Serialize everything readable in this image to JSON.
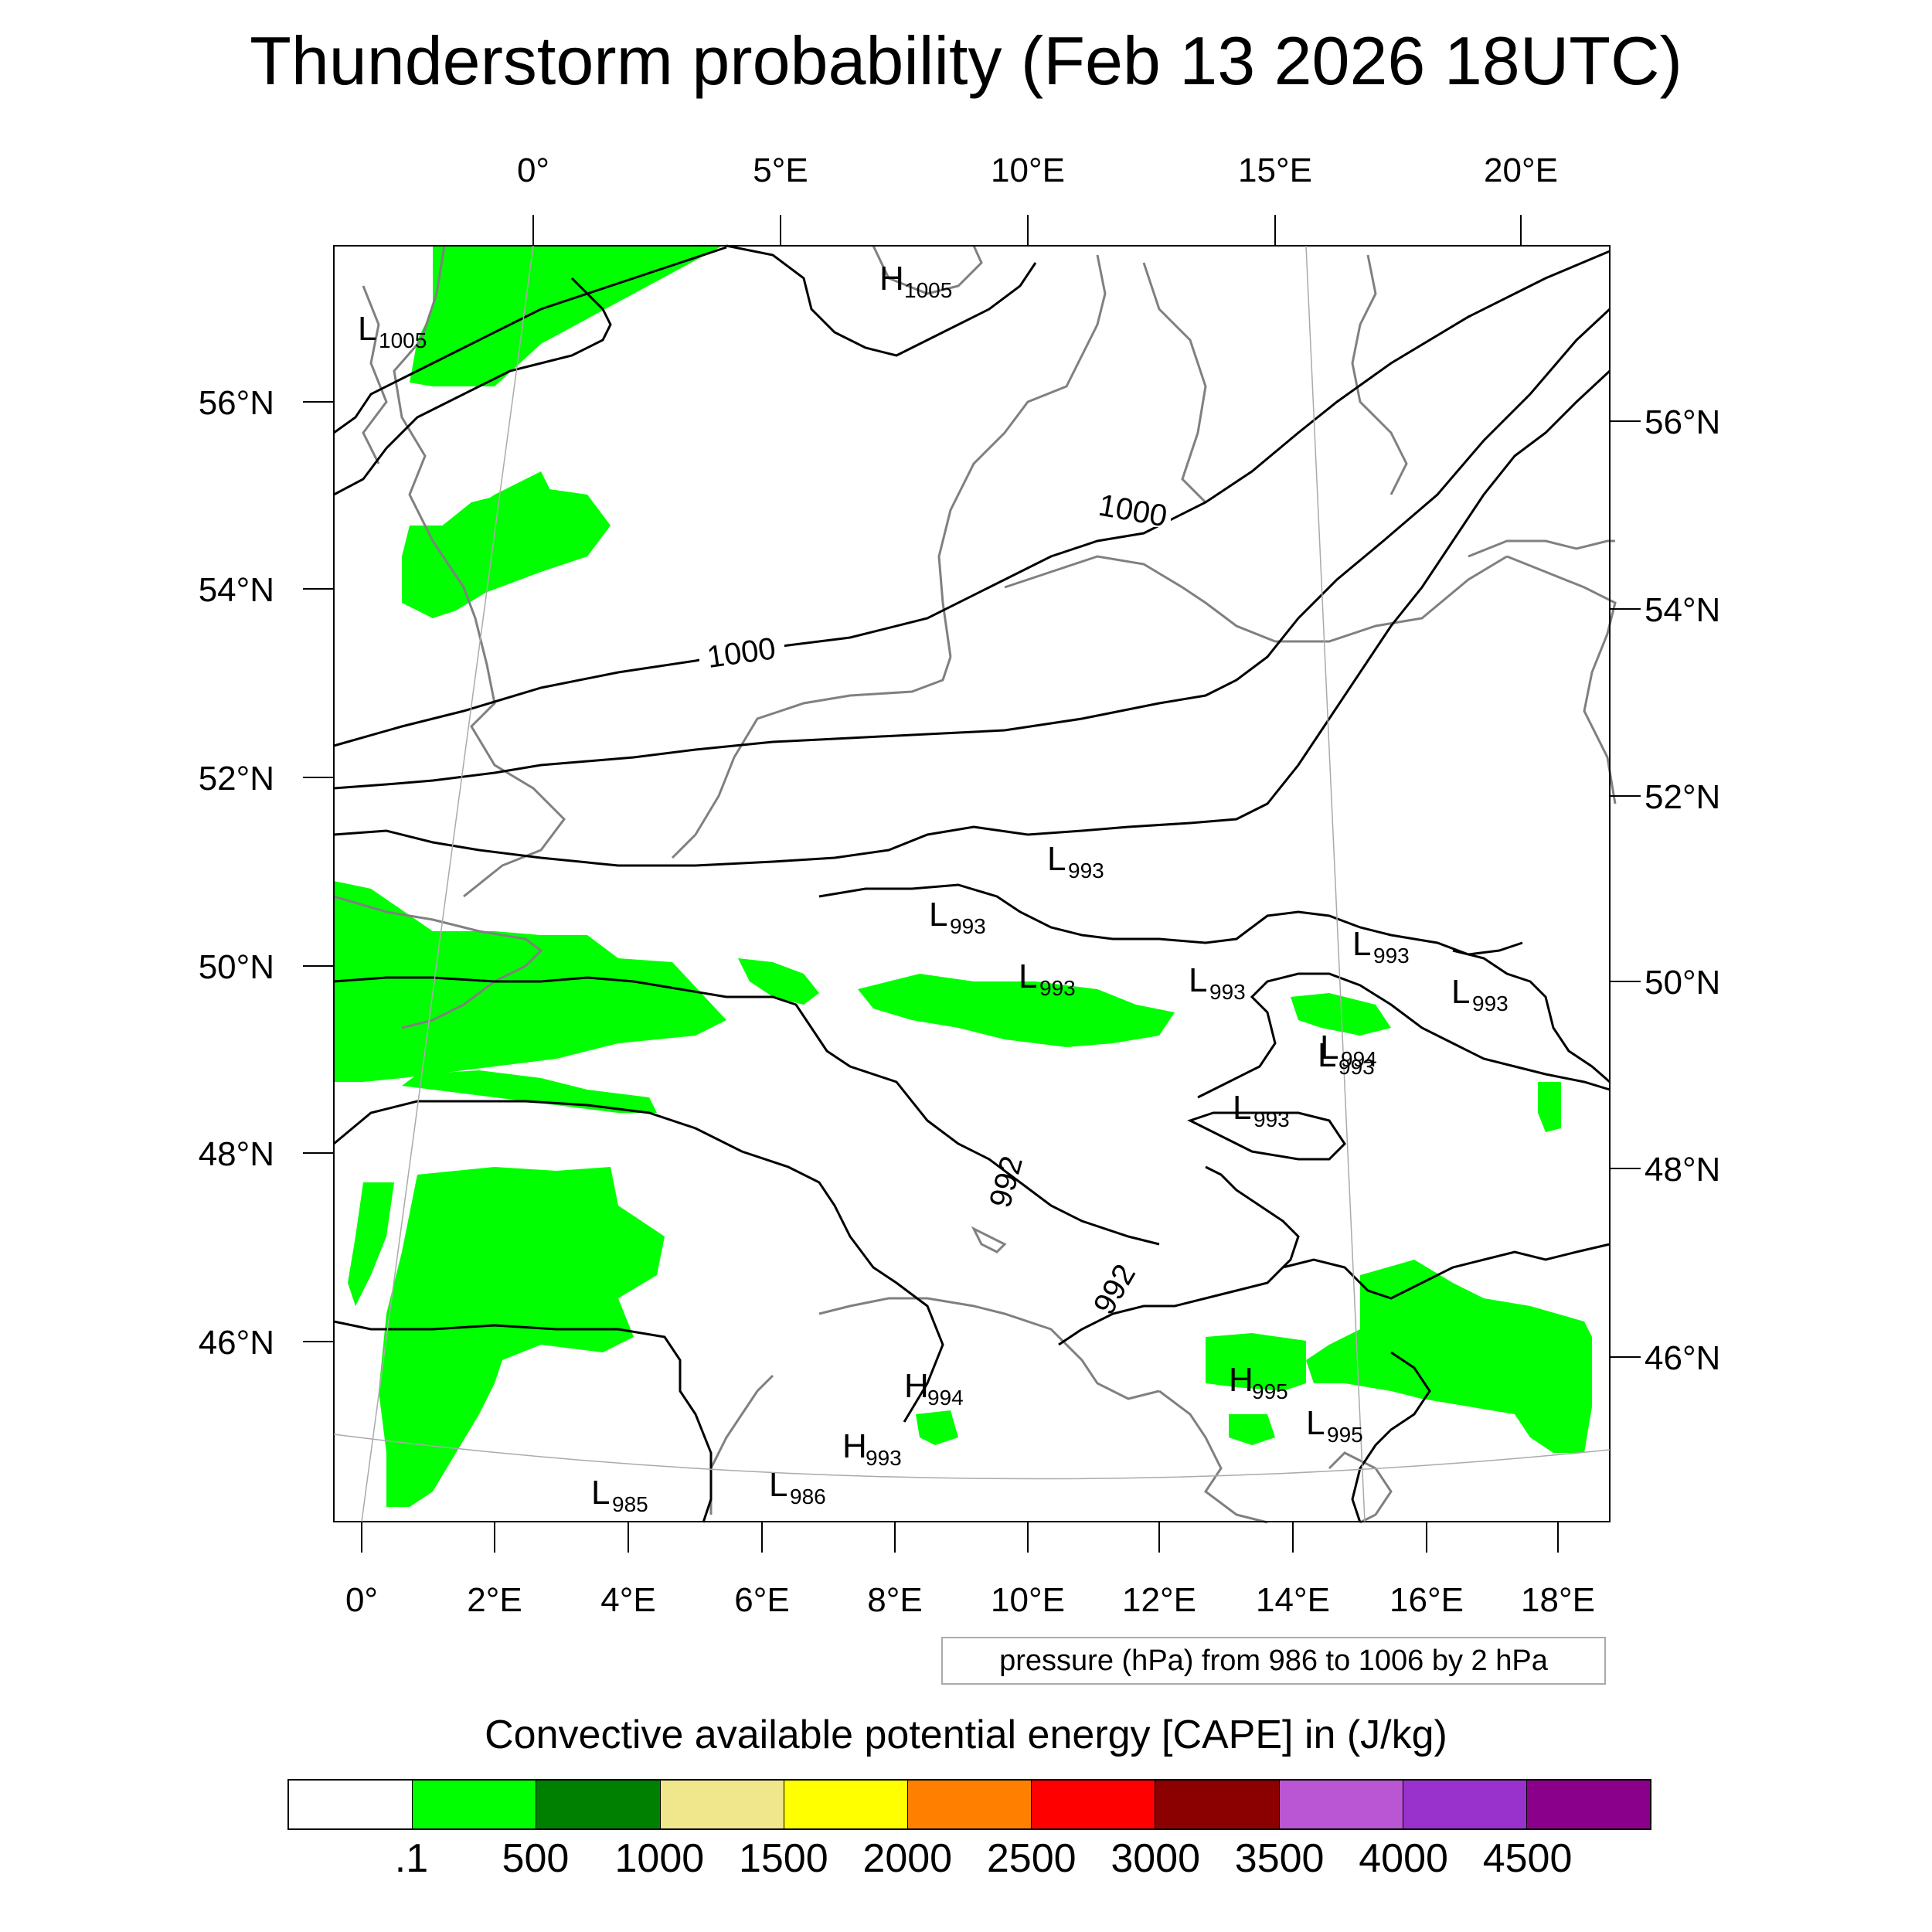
{
  "title": "Thunderstorm probability (Feb 13 2026 18UTC)",
  "top_lon_labels": [
    "0°",
    "5°E",
    "10°E",
    "15°E",
    "20°E"
  ],
  "bottom_lon_labels": [
    "0°",
    "2°E",
    "4°E",
    "6°E",
    "8°E",
    "10°E",
    "12°E",
    "14°E",
    "16°E",
    "18°E"
  ],
  "left_lat_labels": [
    "56°N",
    "54°N",
    "52°N",
    "50°N",
    "48°N",
    "46°N"
  ],
  "right_lat_labels": [
    "56°N",
    "54°N",
    "52°N",
    "50°N",
    "48°N",
    "46°N"
  ],
  "contour_labels": [
    "1000",
    "1000",
    "992",
    "992"
  ],
  "pressure_centers": [
    {
      "type": "H",
      "value": "1005"
    },
    {
      "type": "L",
      "value": "1005"
    },
    {
      "type": "L",
      "value": "993"
    },
    {
      "type": "L",
      "value": "993"
    },
    {
      "type": "L",
      "value": "993"
    },
    {
      "type": "L",
      "value": "993"
    },
    {
      "type": "L",
      "value": "993"
    },
    {
      "type": "L",
      "value": "993"
    },
    {
      "type": "L",
      "value": "993"
    },
    {
      "type": "L",
      "value": "994"
    },
    {
      "type": "L",
      "value": "993"
    },
    {
      "type": "H",
      "value": "994"
    },
    {
      "type": "H",
      "value": "993"
    },
    {
      "type": "H",
      "value": "995"
    },
    {
      "type": "L",
      "value": "995"
    },
    {
      "type": "L",
      "value": "985"
    },
    {
      "type": "L",
      "value": "986"
    }
  ],
  "pressure_note": "pressure (hPa) from 986 to 1006 by 2 hPa",
  "cape_title": "Convective available potential energy [CAPE] in (J/kg)",
  "colorbar": {
    "colors": [
      "#ffffff",
      "#00ff00",
      "#008000",
      "#f0e68c",
      "#ffff00",
      "#ff8000",
      "#ff0000",
      "#8b0000",
      "#ba55d3",
      "#9932cc",
      "#8b008b"
    ],
    "labels": [
      ".1",
      "500",
      "1000",
      "1500",
      "2000",
      "2500",
      "3000",
      "3500",
      "4000",
      "4500"
    ]
  },
  "colors": {
    "cape_green": "#00ff00",
    "coast": "#808080",
    "isobar": "#000000"
  }
}
